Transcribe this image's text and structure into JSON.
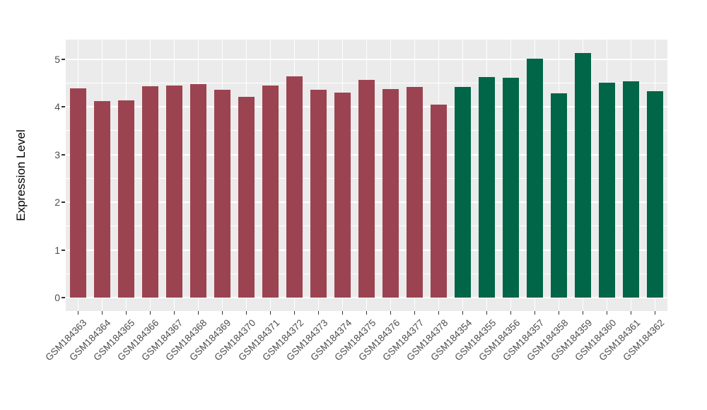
{
  "chart_data": {
    "type": "bar",
    "title": "",
    "xlabel": "",
    "ylabel": "Expression Level",
    "categories": [
      "GSM184363",
      "GSM184364",
      "GSM184365",
      "GSM184366",
      "GSM184367",
      "GSM184368",
      "GSM184369",
      "GSM184370",
      "GSM184371",
      "GSM184372",
      "GSM184373",
      "GSM184374",
      "GSM184375",
      "GSM184376",
      "GSM184377",
      "GSM184378",
      "GSM184354",
      "GSM184355",
      "GSM184356",
      "GSM184357",
      "GSM184358",
      "GSM184359",
      "GSM184360",
      "GSM184361",
      "GSM184362"
    ],
    "values": [
      4.38,
      4.12,
      4.14,
      4.43,
      4.45,
      4.48,
      4.35,
      4.2,
      4.45,
      4.64,
      4.35,
      4.29,
      4.56,
      4.37,
      4.42,
      4.04,
      4.41,
      4.62,
      4.6,
      5.0,
      4.28,
      5.13,
      4.51,
      4.53,
      4.32
    ],
    "bar_groups": [
      "A",
      "A",
      "A",
      "A",
      "A",
      "A",
      "A",
      "A",
      "A",
      "A",
      "A",
      "A",
      "A",
      "A",
      "A",
      "A",
      "B",
      "B",
      "B",
      "B",
      "B",
      "B",
      "B",
      "B",
      "B"
    ],
    "group_colors": {
      "A": "#9C4351",
      "B": "#006647"
    },
    "yticks": [
      0,
      1,
      2,
      3,
      4,
      5
    ],
    "ylim": [
      0,
      5.4
    ],
    "grid": "horizontal major (integers) and minor (halves) white lines; vertical white lines at bar centers",
    "legend": "none",
    "panel_background": "#EBEBEB",
    "gridline_color": "#FFFFFF",
    "tick_label_color": "#4D4D4D",
    "axis_title_color": "#000000"
  }
}
